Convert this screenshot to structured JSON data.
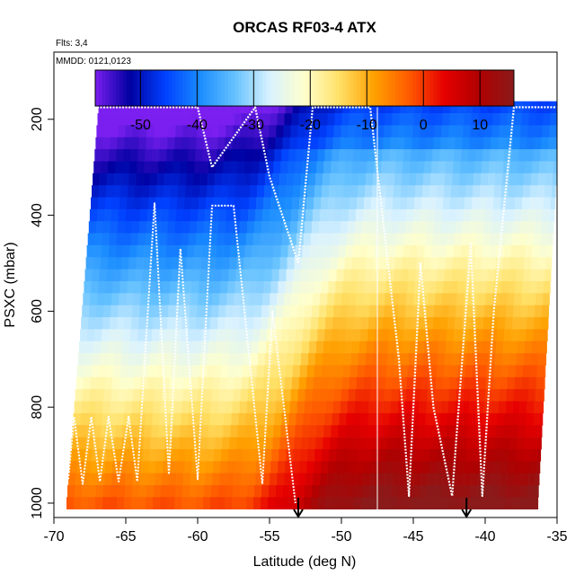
{
  "chart_data": {
    "type": "heatmap",
    "title": "ORCAS RF03-4 ATX",
    "flights_note": "Flts: 3,4",
    "date_note": "MMDD: 0121,0123",
    "xlabel": "Latitude (deg N)",
    "ylabel": "PSXC (mbar)",
    "xlim": [
      -70,
      -35
    ],
    "ylim": [
      1030,
      60
    ],
    "x_ticks": [
      -70,
      -65,
      -60,
      -55,
      -50,
      -45,
      -40,
      -35
    ],
    "y_ticks": [
      200,
      400,
      600,
      800,
      1000
    ],
    "colorbar": {
      "min": -58,
      "max": 16,
      "ticks": [
        -50,
        -40,
        -30,
        -20,
        -10,
        0,
        10
      ],
      "boundaries": [
        -50,
        -40,
        -30,
        -20,
        -10,
        0,
        10
      ],
      "colors": [
        "#7a1ff0",
        "#0000a0",
        "#0040ff",
        "#1a8cff",
        "#66c2ff",
        "#d9f2ff",
        "#ffffcc",
        "#ffe066",
        "#ffa000",
        "#ff5a00",
        "#e60000",
        "#b00000",
        "#8b1a1a"
      ]
    },
    "pressure_levels": [
      175,
      200,
      225,
      250,
      275,
      300,
      325,
      350,
      375,
      400,
      425,
      450,
      475,
      500,
      525,
      550,
      575,
      600,
      625,
      650,
      675,
      700,
      725,
      750,
      775,
      800,
      825,
      850,
      875,
      900,
      925,
      950,
      975,
      1000
    ],
    "temperature_profile_front_lat": -53.5,
    "arrow_markers_lat": [
      -53,
      -41.3
    ],
    "divider_lat": -47.5,
    "flight_track_description": "white dotted profile paths"
  }
}
